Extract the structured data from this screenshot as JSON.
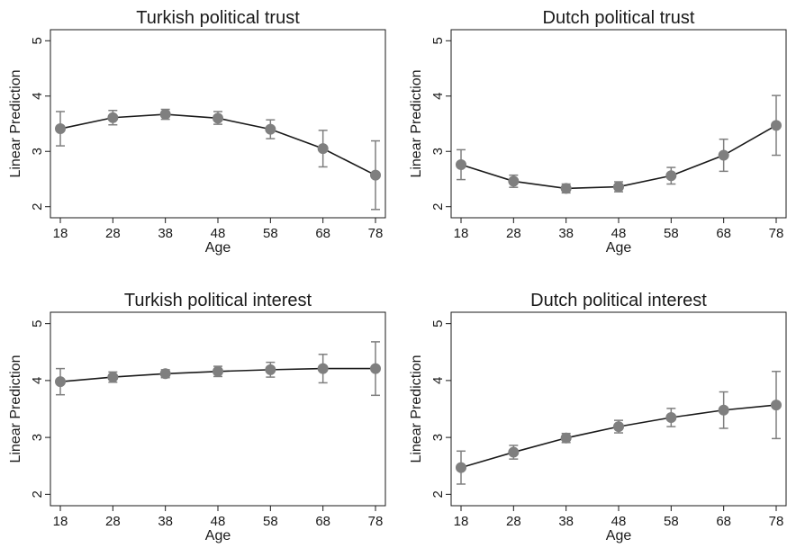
{
  "figure": {
    "colors": {
      "marker": "#7f7f7f",
      "line": "#1a1a1a",
      "errorbar": "#7f7f7f",
      "axis": "#1a1a1a",
      "background": "#ffffff"
    }
  },
  "chart_data": [
    {
      "type": "line",
      "title": "Turkish political trust",
      "xlabel": "Age",
      "ylabel": "Linear Prediction",
      "x": [
        18,
        28,
        38,
        48,
        58,
        68,
        78
      ],
      "xticks": [
        "18",
        "28",
        "38",
        "48",
        "58",
        "68",
        "78"
      ],
      "yticks": [
        "2",
        "3",
        "4",
        "5"
      ],
      "ylim": [
        1.8,
        5.2
      ],
      "series": [
        {
          "values": [
            3.41,
            3.61,
            3.67,
            3.6,
            3.4,
            3.05,
            2.57
          ],
          "ci_low": [
            3.1,
            3.48,
            3.58,
            3.49,
            3.23,
            2.72,
            1.95
          ],
          "ci_high": [
            3.72,
            3.74,
            3.76,
            3.72,
            3.57,
            3.38,
            3.19
          ]
        }
      ],
      "grid": false
    },
    {
      "type": "line",
      "title": "Dutch political trust",
      "xlabel": "Age",
      "ylabel": "Linear Prediction",
      "x": [
        18,
        28,
        38,
        48,
        58,
        68,
        78
      ],
      "xticks": [
        "18",
        "28",
        "38",
        "48",
        "58",
        "68",
        "78"
      ],
      "yticks": [
        "2",
        "3",
        "4",
        "5"
      ],
      "ylim": [
        1.8,
        5.2
      ],
      "series": [
        {
          "values": [
            2.76,
            2.46,
            2.33,
            2.36,
            2.56,
            2.93,
            3.47
          ],
          "ci_low": [
            2.49,
            2.35,
            2.25,
            2.27,
            2.41,
            2.64,
            2.93
          ],
          "ci_high": [
            3.03,
            2.57,
            2.41,
            2.45,
            2.71,
            3.22,
            4.01
          ]
        }
      ],
      "grid": false
    },
    {
      "type": "line",
      "title": "Turkish political interest",
      "xlabel": "Age",
      "ylabel": "Linear Prediction",
      "x": [
        18,
        28,
        38,
        48,
        58,
        68,
        78
      ],
      "xticks": [
        "18",
        "28",
        "38",
        "48",
        "58",
        "68",
        "78"
      ],
      "yticks": [
        "2",
        "3",
        "4",
        "5"
      ],
      "ylim": [
        1.8,
        5.2
      ],
      "series": [
        {
          "values": [
            3.98,
            4.06,
            4.12,
            4.16,
            4.19,
            4.21,
            4.21
          ],
          "ci_low": [
            3.75,
            3.97,
            4.05,
            4.07,
            4.06,
            3.96,
            3.74
          ],
          "ci_high": [
            4.21,
            4.15,
            4.19,
            4.25,
            4.32,
            4.46,
            4.68
          ]
        }
      ],
      "grid": false
    },
    {
      "type": "line",
      "title": "Dutch political interest",
      "xlabel": "Age",
      "ylabel": "Linear Prediction",
      "x": [
        18,
        28,
        38,
        48,
        58,
        68,
        78
      ],
      "xticks": [
        "18",
        "28",
        "38",
        "48",
        "58",
        "68",
        "78"
      ],
      "yticks": [
        "2",
        "3",
        "4",
        "5"
      ],
      "ylim": [
        1.8,
        5.2
      ],
      "series": [
        {
          "values": [
            2.47,
            2.74,
            2.99,
            3.19,
            3.35,
            3.48,
            3.57
          ],
          "ci_low": [
            2.18,
            2.62,
            2.91,
            3.08,
            3.19,
            3.16,
            2.98
          ],
          "ci_high": [
            2.76,
            2.86,
            3.07,
            3.3,
            3.51,
            3.8,
            4.16
          ]
        }
      ],
      "grid": false
    }
  ]
}
